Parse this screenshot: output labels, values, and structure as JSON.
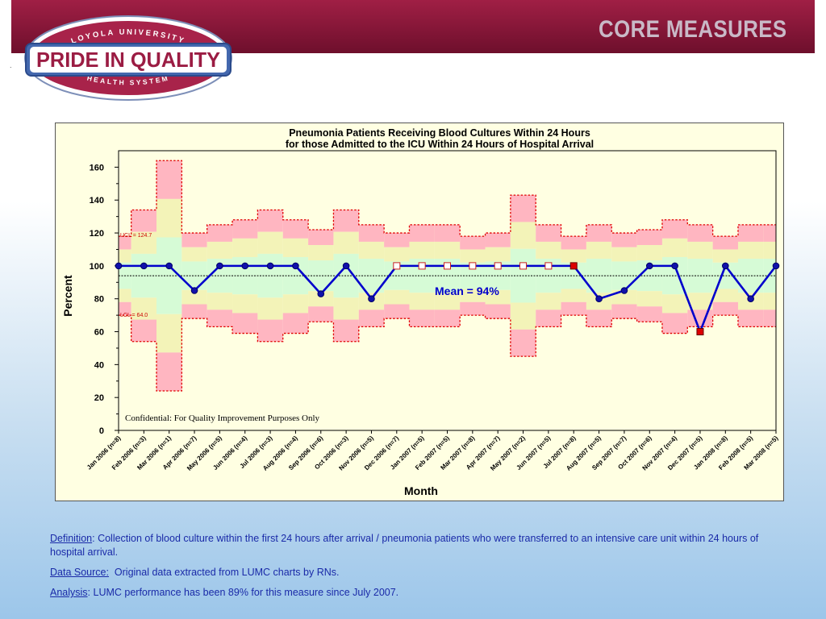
{
  "header": {
    "logo_top": "LOYOLA UNIVERSITY",
    "logo_main": "PRIDE IN QUALITY",
    "logo_bottom": "HEALTH SYSTEM",
    "title": "CORE MEASURES",
    "corner_mark": "."
  },
  "colors": {
    "banner": "#8a1838",
    "chart_bg": "#ffffe2",
    "series_line": "#0000cc",
    "red_band": "#ffb6c1",
    "yellow_band": "#f3f3b8",
    "green_band": "#d6fbd6"
  },
  "chart_data": {
    "type": "line",
    "title_line1": "Pneumonia Patients Receiving Blood Cultures Within 24 Hours",
    "title_line2": "for those Admitted to the ICU Within 24 Hours of Hospital Arrival",
    "xlabel": "Month",
    "ylabel": "Percent",
    "ylim": [
      0,
      170
    ],
    "yticks": [
      0,
      20,
      40,
      60,
      80,
      100,
      120,
      140,
      160
    ],
    "categories": [
      "Jan 2006 (n=8)",
      "Feb 2006 (n=3)",
      "Mar 2006 (n=1)",
      "Apr 2006 (n=7)",
      "May 2006 (n=5)",
      "Jun 2006 (n=4)",
      "Jul 2006 (n=3)",
      "Aug 2006 (n=4)",
      "Sep 2006 (n=6)",
      "Oct 2006 (n=3)",
      "Nov 2006 (n=5)",
      "Dec 2006 (n=7)",
      "Jan 2007 (n=5)",
      "Feb 2007 (n=5)",
      "Mar 2007 (n=8)",
      "Apr 2007 (n=7)",
      "May 2007 (n=2)",
      "Jun 2007 (n=5)",
      "Jul 2007 (n=8)",
      "Aug 2007 (n=5)",
      "Sep 2007 (n=7)",
      "Oct 2007 (n=6)",
      "Nov 2007 (n=4)",
      "Dec 2007 (n=5)",
      "Jan 2008 (n=8)",
      "Feb 2008 (n=5)",
      "Mar 2008 (n=5)"
    ],
    "values": [
      100,
      100,
      100,
      85,
      100,
      100,
      100,
      100,
      83,
      100,
      80,
      100,
      100,
      100,
      100,
      100,
      100,
      100,
      100,
      80,
      85,
      100,
      100,
      60,
      100,
      80,
      100
    ],
    "marker_types": [
      "circle",
      "circle",
      "circle",
      "circle",
      "circle",
      "circle",
      "circle",
      "circle",
      "circle",
      "circle",
      "circle",
      "open-square",
      "open-square",
      "open-square",
      "open-square",
      "open-square",
      "open-square",
      "open-square",
      "red-square",
      "circle",
      "circle",
      "circle",
      "circle",
      "red-square",
      "circle",
      "circle",
      "circle"
    ],
    "ucl": [
      118,
      134,
      164,
      120,
      125,
      128,
      134,
      128,
      122,
      134,
      125,
      120,
      125,
      125,
      118,
      120,
      143,
      125,
      118,
      125,
      120,
      122,
      128,
      125,
      118,
      125,
      125
    ],
    "lcl": [
      70,
      54,
      24,
      68,
      63,
      59,
      54,
      59,
      66,
      54,
      63,
      68,
      63,
      63,
      70,
      68,
      45,
      63,
      70,
      63,
      68,
      66,
      59,
      63,
      70,
      63,
      63
    ],
    "mean": 94,
    "mean_label": "Mean = 94%",
    "ucl_label": "UCL = 124.7",
    "lcl_label": "LCL = 64.0",
    "annotation": "Confidential: For Quality Improvement Purposes Only",
    "grid": false,
    "legend": "none"
  },
  "notes": {
    "definition_label": "Definition",
    "definition_text": ": Collection of blood culture within the first 24 hours after arrival / pneumonia patients who were transferred to an intensive care unit within 24 hours of hospital arrival.",
    "source_label": "Data Source:",
    "source_text": "  Original data extracted from LUMC charts by RNs.",
    "analysis_label": "Analysis",
    "analysis_text": ": LUMC performance has been 89% for this measure since July 2007."
  }
}
